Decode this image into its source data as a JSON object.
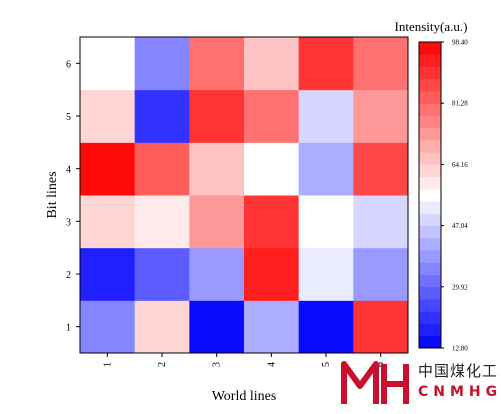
{
  "chart_data": {
    "type": "heatmap",
    "xlabel": "World lines",
    "ylabel": "Bit lines",
    "x_categories": [
      "1",
      "2",
      "3",
      "4",
      "5",
      "6"
    ],
    "y_categories": [
      "1",
      "2",
      "3",
      "4",
      "5",
      "6"
    ],
    "values": [
      [
        35,
        62,
        14,
        43,
        13,
        90
      ],
      [
        19,
        28,
        40,
        93,
        52,
        37
      ],
      [
        62,
        58,
        73,
        89,
        55,
        48
      ],
      [
        98,
        84,
        66,
        57,
        42,
        85
      ],
      [
        64,
        21,
        90,
        81,
        50,
        73
      ],
      [
        54,
        34,
        81,
        67,
        90,
        81
      ]
    ],
    "colorbar": {
      "title": "Intensity(a.u.)",
      "min": 12.8,
      "max": 98.4,
      "ticks": [
        "98.40",
        "81.28",
        "64.16",
        "47.04",
        "29.92",
        "12.80"
      ],
      "colors": {
        "low": "#0000ff",
        "mid": "#ffffff",
        "high": "#ff0000"
      },
      "levels": 25
    },
    "grid": false,
    "legend": "right"
  },
  "watermark": {
    "logo_icon": "cnmhg-logo-icon",
    "cn_text": "中国煤化工",
    "en_text": "CNMHG",
    "color": "#c8102e"
  }
}
